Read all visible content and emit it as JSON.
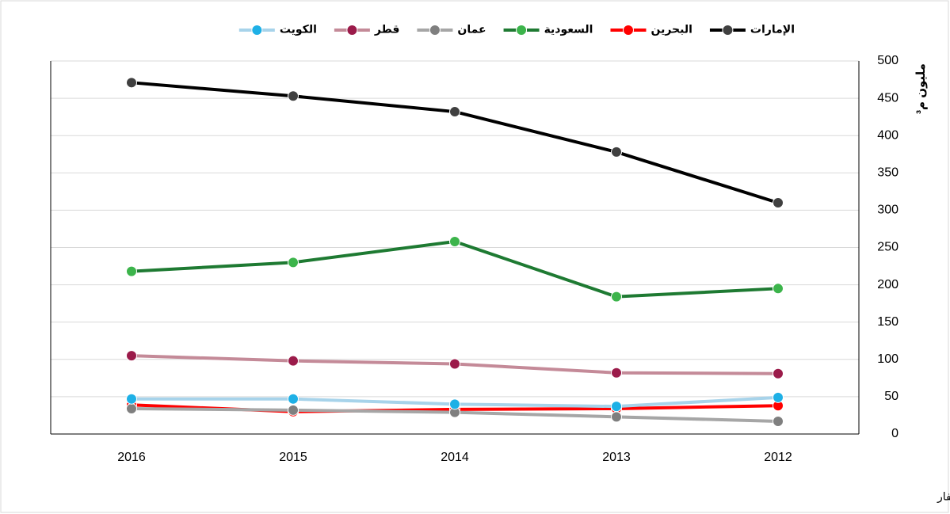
{
  "chart_data": {
    "type": "line",
    "y_label": "مليون م³",
    "note": "بيانات عمان لا تشمل محافظة ظفار",
    "categories": [
      "2016",
      "2015",
      "2014",
      "2013",
      "2012"
    ],
    "ylim": [
      0,
      500
    ],
    "yticks": [
      0,
      50,
      100,
      150,
      200,
      250,
      300,
      350,
      400,
      450,
      500
    ],
    "grid": true,
    "series": [
      {
        "name": "الإمارات",
        "color": "#000000",
        "marker_color": "#404040",
        "values": [
          471,
          453,
          432,
          378,
          310
        ]
      },
      {
        "name": "البحرين",
        "color": "#ff0000",
        "marker_color": "#ff0000",
        "values": [
          39,
          30,
          33,
          34,
          38
        ]
      },
      {
        "name": "السعودية",
        "color": "#1e7a32",
        "marker_color": "#3cb44b",
        "values": [
          218,
          230,
          258,
          184,
          195
        ]
      },
      {
        "name": "عمان",
        "color": "#a6a6a6",
        "marker_color": "#7f7f7f",
        "values": [
          34,
          32,
          29,
          23,
          17
        ]
      },
      {
        "name": "قطر",
        "color": "#c48a98",
        "marker_color": "#9b1b4a",
        "values": [
          105,
          98,
          94,
          82,
          81
        ]
      },
      {
        "name": "الكويت",
        "color": "#a7d3ea",
        "marker_color": "#1eb0e6",
        "values": [
          47,
          47,
          40,
          37,
          49
        ]
      }
    ]
  }
}
